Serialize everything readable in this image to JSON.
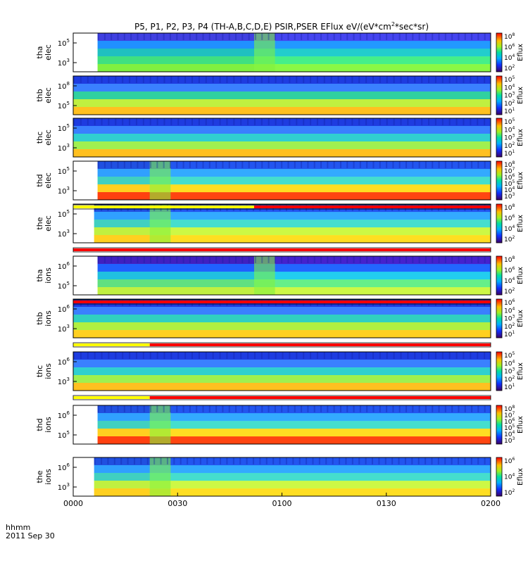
{
  "chart_data": {
    "type": "heatmap",
    "title_main": "P5, P1, P2, P3, P4 (TH-A,B,C,D,E) PSIR,PSER EFlux eV/(eV*cm",
    "title_sup": "2",
    "title_tail": "*sec*sr)",
    "time_axis": {
      "ticks": [
        "0000",
        "0030",
        "0100",
        "0130",
        "0200"
      ],
      "ticks_minutes": [
        0,
        30,
        60,
        90,
        120
      ],
      "range_minutes": [
        0,
        120
      ],
      "label_line1": "hhmm",
      "label_line2": "2011 Sep 30"
    },
    "colorbar_label": "Eflux",
    "panels": [
      {
        "probe": "tha",
        "species": "elec",
        "ytick_exps": [
          "5",
          "3"
        ],
        "cbar_exps": [
          "8",
          "6",
          "4",
          "2"
        ],
        "data_start_min": 7,
        "mode_change_min": 52,
        "band_colors": [
          "#4040e0",
          "#2090ff",
          "#20c0c0",
          "#40e080",
          "#80f040"
        ]
      },
      {
        "probe": "thb",
        "species": "elec",
        "ytick_exps": [
          "8",
          "5"
        ],
        "cbar_exps": [
          "5",
          "4",
          "3",
          "2",
          "1"
        ],
        "data_start_min": 0,
        "mode_change_min": null,
        "band_colors": [
          "#1e3ce0",
          "#3a80ff",
          "#30d0a0",
          "#c0f040",
          "#ffc020"
        ]
      },
      {
        "probe": "thc",
        "species": "elec",
        "ytick_exps": [
          "5",
          "3"
        ],
        "cbar_exps": [
          "5",
          "4",
          "3",
          "2",
          "1"
        ],
        "data_start_min": 0,
        "mode_change_min": null,
        "band_colors": [
          "#1e3ce0",
          "#3a80ff",
          "#30d0d0",
          "#a0f050",
          "#ffc020"
        ]
      },
      {
        "probe": "thd",
        "species": "elec",
        "ytick_exps": [
          "5",
          "3"
        ],
        "cbar_exps": [
          "8",
          "7",
          "6",
          "5",
          "4",
          "3"
        ],
        "data_start_min": 7,
        "mode_change_min": 22,
        "band_colors": [
          "#2050e0",
          "#30a0ff",
          "#40d0c0",
          "#ffd020",
          "#ff4010"
        ]
      },
      {
        "probe": "the",
        "species": "elec",
        "ytick_exps": [
          "5",
          "3"
        ],
        "cbar_exps": [
          "8",
          "6",
          "4",
          "2"
        ],
        "data_start_min": 6,
        "mode_change_min": 22,
        "band_colors": [
          "#2050e0",
          "#30a0ff",
          "#40d0c0",
          "#c0f040",
          "#ffd020"
        ]
      },
      {
        "probe": "tha",
        "species": "ions",
        "ytick_exps": [
          "6",
          "5"
        ],
        "cbar_exps": [
          "8",
          "6",
          "4",
          "2"
        ],
        "data_start_min": 7,
        "mode_change_min": 52,
        "band_colors": [
          "#4020c0",
          "#2060ff",
          "#20c0e0",
          "#60e080",
          "#c0f040"
        ]
      },
      {
        "probe": "thb",
        "species": "ions",
        "ytick_exps": [
          "6",
          "3"
        ],
        "cbar_exps": [
          "6",
          "4",
          "3",
          "2",
          "1"
        ],
        "data_start_min": 0,
        "mode_change_min": null,
        "band_colors": [
          "#1e3ce0",
          "#3a80ff",
          "#30d0c0",
          "#b0f040",
          "#ffd020"
        ]
      },
      {
        "probe": "thc",
        "species": "ions",
        "ytick_exps": [
          "6",
          "3"
        ],
        "cbar_exps": [
          "5",
          "4",
          "3",
          "2",
          "1"
        ],
        "data_start_min": 0,
        "mode_change_min": null,
        "band_colors": [
          "#1e3ce0",
          "#3a80ff",
          "#30d0d0",
          "#a0f050",
          "#ffc020"
        ]
      },
      {
        "probe": "thd",
        "species": "ions",
        "ytick_exps": [
          "6",
          "5"
        ],
        "cbar_exps": [
          "8",
          "7",
          "6",
          "5",
          "4",
          "3"
        ],
        "data_start_min": 7,
        "mode_change_min": 22,
        "band_colors": [
          "#2050e0",
          "#30a0ff",
          "#40d0c0",
          "#ffd020",
          "#ff4010"
        ]
      },
      {
        "probe": "the",
        "species": "ions",
        "ytick_exps": [
          "6",
          "3"
        ],
        "cbar_exps": [
          "6",
          "4",
          "2"
        ],
        "data_start_min": 6,
        "mode_change_min": 22,
        "band_colors": [
          "#2050e0",
          "#30a0ff",
          "#40d0c0",
          "#c0f040",
          "#ffd020"
        ]
      }
    ],
    "mode_bars": [
      {
        "after_panel": 4,
        "segments": [
          {
            "from": 0,
            "to": 52,
            "color": "#ffff00"
          },
          {
            "from": 52,
            "to": 120,
            "color": "#ff0000"
          }
        ]
      },
      {
        "after_panel": 5,
        "segments": [
          {
            "from": 0,
            "to": 120,
            "color": "#ff0000"
          }
        ]
      },
      {
        "after_panel": 6,
        "segments": [
          {
            "from": 0,
            "to": 120,
            "color": "#ff0000"
          }
        ]
      },
      {
        "after_panel": 7,
        "segments": [
          {
            "from": 0,
            "to": 22,
            "color": "#ffff00"
          },
          {
            "from": 22,
            "to": 120,
            "color": "#ff0000"
          }
        ]
      },
      {
        "after_panel": 8,
        "segments": [
          {
            "from": 0,
            "to": 22,
            "color": "#ffff00"
          },
          {
            "from": 22,
            "to": 120,
            "color": "#ff0000"
          }
        ]
      }
    ]
  }
}
